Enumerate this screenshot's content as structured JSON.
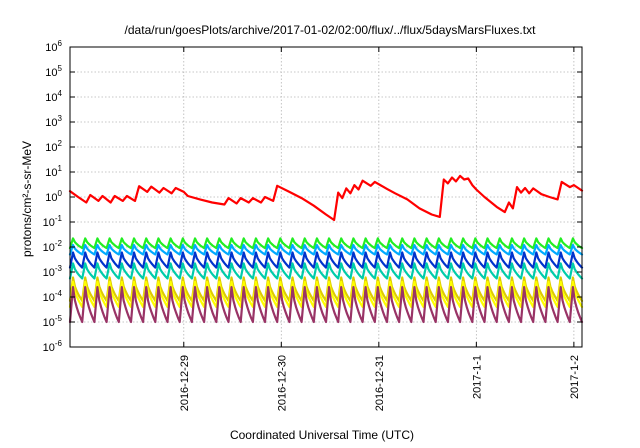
{
  "chart_data": {
    "type": "line",
    "title": "/data/run/goesPlots/archive/2017-01-02/02:00/flux/../flux/5daysMarsFluxes.txt",
    "xlabel": "Coordinated Universal Time (UTC)",
    "ylabel": "protons/cm²-s-sr-MeV",
    "x_scale": "time",
    "y_scale": "log",
    "grid": true,
    "xlim": [
      "2016-12-27 20:00",
      "2017-01-02 02:00"
    ],
    "ylim": [
      1e-06,
      1000000.0
    ],
    "x_ticks": [
      {
        "label": "2016-12-29",
        "x": "2016-12-29 00:00"
      },
      {
        "label": "2016-12-30",
        "x": "2016-12-30 00:00"
      },
      {
        "label": "2016-12-31",
        "x": "2016-12-31 00:00"
      },
      {
        "label": "2017-1-1",
        "x": "2017-01-01 00:00"
      },
      {
        "label": "2017-1-2",
        "x": "2017-01-02 00:00"
      }
    ],
    "y_ticks": [
      {
        "base": "10",
        "exp": "-6",
        "value": 1e-06
      },
      {
        "base": "10",
        "exp": "-5",
        "value": 1e-05
      },
      {
        "base": "10",
        "exp": "-4",
        "value": 0.0001
      },
      {
        "base": "10",
        "exp": "-3",
        "value": 0.001
      },
      {
        "base": "10",
        "exp": "-2",
        "value": 0.01
      },
      {
        "base": "10",
        "exp": "-1",
        "value": 0.1
      },
      {
        "base": "10",
        "exp": "0",
        "value": 1
      },
      {
        "base": "10",
        "exp": "1",
        "value": 10
      },
      {
        "base": "10",
        "exp": "2",
        "value": 100
      },
      {
        "base": "10",
        "exp": "3",
        "value": 1000
      },
      {
        "base": "10",
        "exp": "4",
        "value": 10000
      },
      {
        "base": "10",
        "exp": "5",
        "value": 100000
      },
      {
        "base": "10",
        "exp": "6",
        "value": 1000000
      }
    ],
    "series": [
      {
        "color": "#ff0000",
        "x": [
          "2016-12-27 20:00",
          "2016-12-27 22:00",
          "2016-12-28 00:00",
          "2016-12-28 01:00",
          "2016-12-28 03:00",
          "2016-12-28 04:00",
          "2016-12-28 06:00",
          "2016-12-28 07:00",
          "2016-12-28 09:00",
          "2016-12-28 10:00",
          "2016-12-28 12:00",
          "2016-12-28 13:00",
          "2016-12-28 15:00",
          "2016-12-28 16:00",
          "2016-12-28 18:00",
          "2016-12-28 19:00",
          "2016-12-28 21:00",
          "2016-12-28 22:00",
          "2016-12-29 00:00",
          "2016-12-29 01:00",
          "2016-12-29 04:00",
          "2016-12-29 07:00",
          "2016-12-29 10:00",
          "2016-12-29 11:00",
          "2016-12-29 13:00",
          "2016-12-29 14:00",
          "2016-12-29 16:00",
          "2016-12-29 17:00",
          "2016-12-29 19:00",
          "2016-12-29 20:00",
          "2016-12-29 22:00",
          "2016-12-29 23:00",
          "2016-12-30 02:00",
          "2016-12-30 05:00",
          "2016-12-30 08:00",
          "2016-12-30 11:00",
          "2016-12-30 13:00",
          "2016-12-30 14:00",
          "2016-12-30 15:00",
          "2016-12-30 16:00",
          "2016-12-30 17:00",
          "2016-12-30 18:00",
          "2016-12-30 19:00",
          "2016-12-30 20:00",
          "2016-12-30 22:00",
          "2016-12-30 23:00",
          "2016-12-31 01:00",
          "2016-12-31 02:00",
          "2016-12-31 04:00",
          "2016-12-31 07:00",
          "2016-12-31 10:00",
          "2016-12-31 13:00",
          "2016-12-31 15:00",
          "2016-12-31 16:00",
          "2016-12-31 17:00",
          "2016-12-31 18:00",
          "2016-12-31 19:00",
          "2016-12-31 20:00",
          "2016-12-31 21:00",
          "2016-12-31 22:00",
          "2016-12-31 23:00",
          "2017-01-01 00:00",
          "2017-01-01 02:00",
          "2017-01-01 05:00",
          "2017-01-01 07:00",
          "2017-01-01 08:00",
          "2017-01-01 09:00",
          "2017-01-01 10:00",
          "2017-01-01 11:00",
          "2017-01-01 12:00",
          "2017-01-01 13:00",
          "2017-01-01 14:00",
          "2017-01-01 16:00",
          "2017-01-01 18:00",
          "2017-01-01 20:00",
          "2017-01-01 21:00",
          "2017-01-01 23:00",
          "2017-01-02 00:00",
          "2017-01-02 02:00"
        ],
        "y": [
          1.7,
          1.0,
          0.6,
          1.2,
          0.7,
          1.1,
          0.6,
          1.1,
          0.7,
          1.1,
          0.7,
          2.7,
          1.6,
          2.6,
          1.5,
          2.3,
          1.4,
          2.3,
          1.6,
          1.1,
          0.8,
          0.6,
          0.5,
          0.9,
          0.55,
          0.9,
          0.6,
          0.9,
          0.6,
          1.0,
          0.7,
          2.8,
          1.6,
          0.9,
          0.45,
          0.2,
          0.12,
          1.5,
          0.9,
          2.2,
          1.4,
          3.0,
          2.0,
          4.5,
          2.8,
          4.0,
          2.6,
          2.1,
          1.4,
          0.8,
          0.35,
          0.2,
          0.16,
          5.0,
          3.5,
          6.0,
          4.2,
          7.0,
          5.0,
          5.5,
          3.0,
          2.0,
          1.0,
          0.4,
          0.25,
          0.6,
          0.35,
          2.5,
          1.5,
          2.3,
          1.4,
          2.2,
          1.3,
          1.0,
          0.8,
          4.0,
          2.5,
          3.0,
          1.8
        ]
      },
      {
        "color": "#22ee22",
        "base": 0.009,
        "peak": 0.022
      },
      {
        "color": "#00aaff",
        "base": 0.005,
        "peak": 0.012
      },
      {
        "color": "#0033cc",
        "base": 0.0015,
        "peak": 0.006
      },
      {
        "color": "#00ccaa",
        "base": 0.00055,
        "peak": 0.0022
      },
      {
        "color": "#ddcc00",
        "base": 7e-05,
        "peak": 0.0006
      },
      {
        "color": "#ffff00",
        "base": 4e-05,
        "peak": 0.0004
      },
      {
        "color": "#993366",
        "base": 1e-05,
        "peak": 0.00025
      }
    ]
  }
}
